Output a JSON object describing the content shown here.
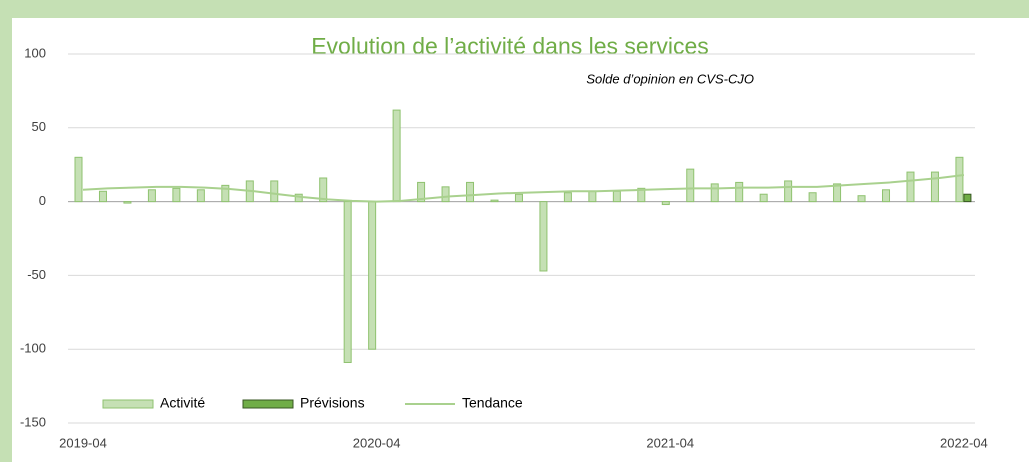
{
  "chart_data": {
    "type": "bar",
    "title": "Evolution de l’activité dans les services",
    "subtitle": "Solde d’opinion en CVS-CJO",
    "categories": [
      "2019-04",
      null,
      null,
      null,
      null,
      null,
      null,
      null,
      null,
      null,
      null,
      null,
      "2020-04",
      null,
      null,
      null,
      null,
      null,
      null,
      null,
      null,
      null,
      null,
      null,
      "2021-04",
      null,
      null,
      null,
      null,
      null,
      null,
      null,
      null,
      null,
      null,
      null,
      "2022-04"
    ],
    "series": [
      {
        "name": "Activité",
        "type": "bar",
        "color": "#c5e0b4",
        "stroke": "#8fc26f",
        "values": [
          30,
          7,
          -1,
          8,
          9,
          8,
          11,
          14,
          14,
          5,
          16,
          -109,
          -100,
          62,
          13,
          10,
          13,
          1,
          5,
          -47,
          6,
          7,
          7,
          9,
          -2,
          22,
          12,
          13,
          5,
          14,
          6,
          12,
          4,
          8,
          20,
          20,
          30
        ]
      },
      {
        "name": "Prévisions",
        "type": "bar",
        "color": "#70ad47",
        "stroke": "#385723",
        "values": [
          null,
          null,
          null,
          null,
          null,
          null,
          null,
          null,
          null,
          null,
          null,
          null,
          null,
          null,
          null,
          null,
          null,
          null,
          null,
          null,
          null,
          null,
          null,
          null,
          null,
          null,
          null,
          null,
          null,
          null,
          null,
          null,
          null,
          null,
          null,
          null,
          5
        ]
      },
      {
        "name": "Tendance",
        "type": "line",
        "color": "#a9d18e",
        "values": [
          8,
          9,
          9.5,
          10,
          10,
          9.5,
          8.5,
          7,
          5,
          3,
          1.5,
          0.5,
          0,
          0.5,
          2,
          3.5,
          4.5,
          5.5,
          6,
          6.5,
          7,
          7,
          7.5,
          8,
          8.5,
          9,
          9,
          9.5,
          9.5,
          10,
          10,
          11,
          12,
          13,
          14.5,
          16,
          18
        ]
      }
    ],
    "ylim": [
      -150,
      100
    ],
    "yticks": [
      -150,
      -100,
      -50,
      0,
      50,
      100
    ],
    "grid": true,
    "legend": "bottom"
  }
}
